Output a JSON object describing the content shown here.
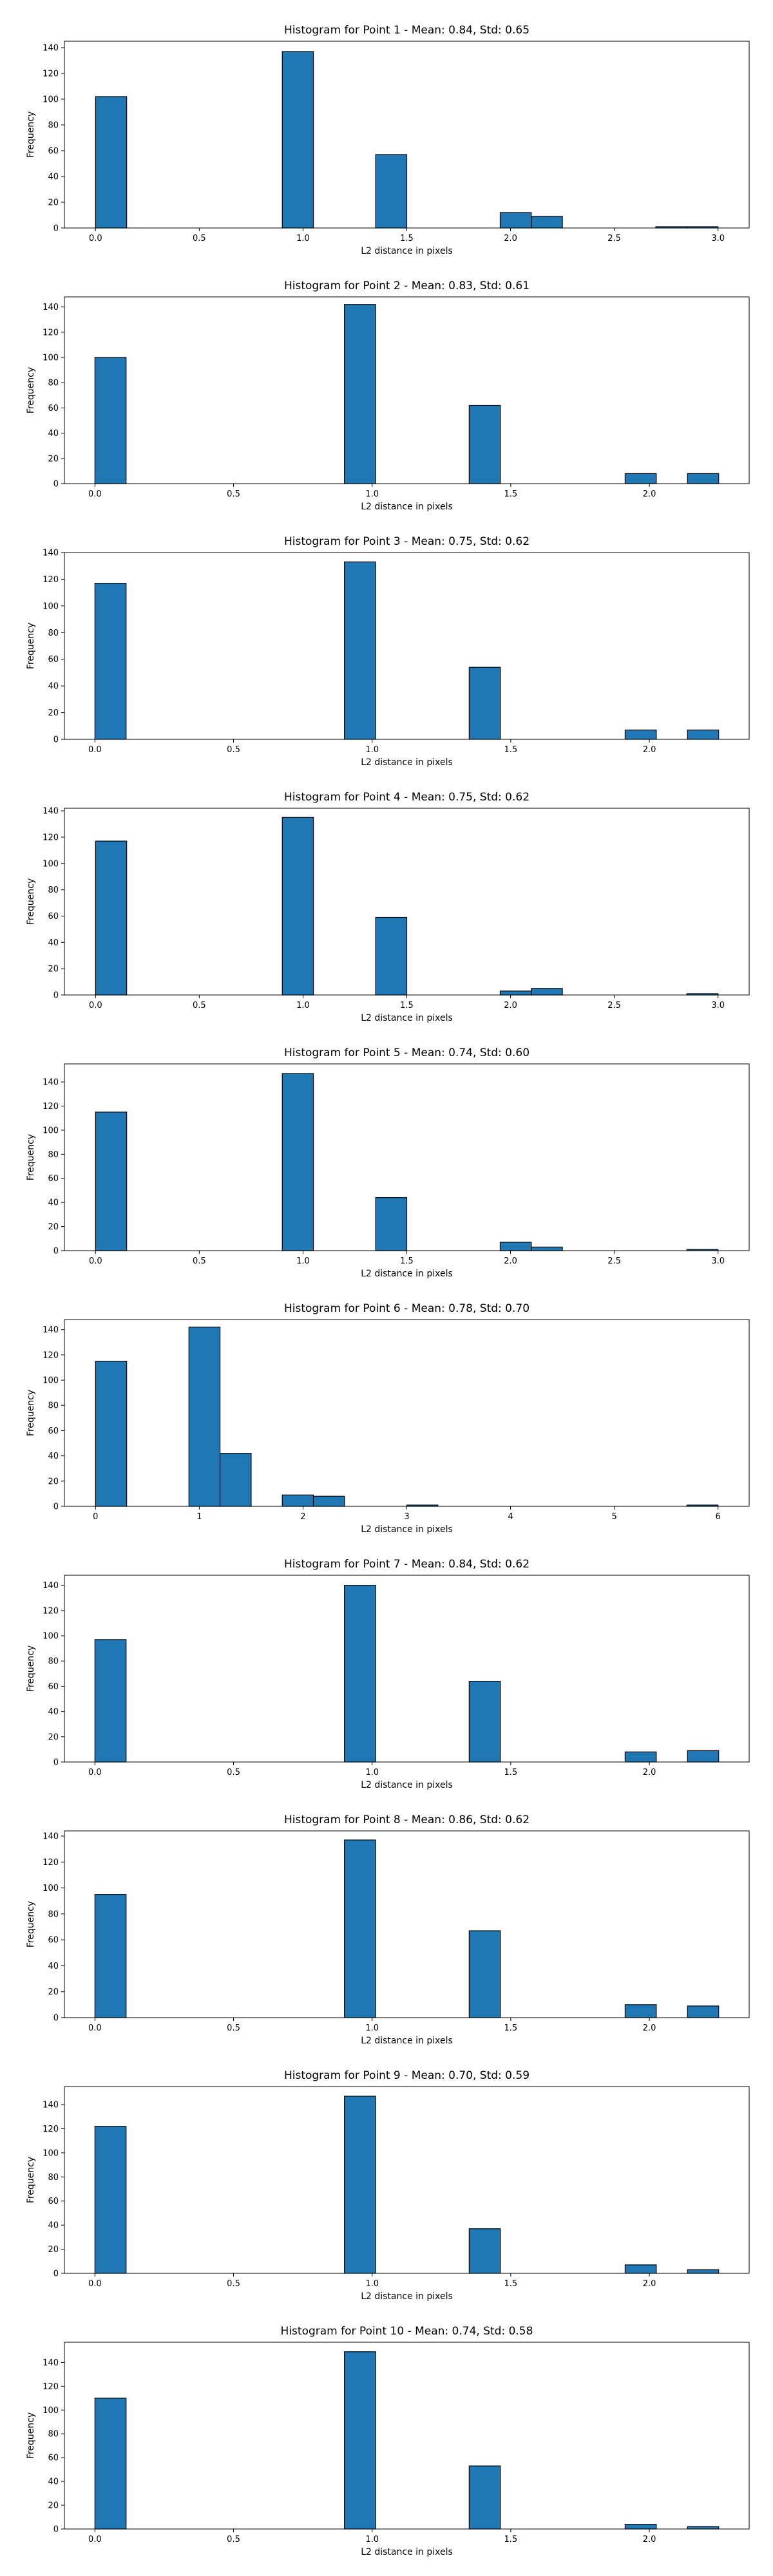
{
  "chart_data": [
    {
      "type": "bar",
      "title": "Histogram for Point 1 - Mean: 0.84, Std: 0.65",
      "xlabel": "L2 distance in pixels",
      "ylabel": "Frequency",
      "xlim": [
        -0.15,
        3.15
      ],
      "ylim": [
        0,
        145
      ],
      "xticks": [
        0,
        0.5,
        1,
        1.5,
        2,
        2.5,
        3
      ],
      "xtick_labels": [
        "0.0",
        "0.5",
        "1.0",
        "1.5",
        "2.0",
        "2.5",
        "3.0"
      ],
      "yticks": [
        0,
        20,
        40,
        60,
        80,
        100,
        120,
        140
      ],
      "bin_width": 0.15,
      "bars": [
        {
          "x0": 0.0,
          "value": 102
        },
        {
          "x0": 0.9,
          "value": 137
        },
        {
          "x0": 1.35,
          "value": 57
        },
        {
          "x0": 1.95,
          "value": 12
        },
        {
          "x0": 2.1,
          "value": 9
        },
        {
          "x0": 2.7,
          "value": 1
        },
        {
          "x0": 2.85,
          "value": 1
        }
      ]
    },
    {
      "type": "bar",
      "title": "Histogram for Point 2 - Mean: 0.83, Std: 0.61",
      "xlabel": "L2 distance in pixels",
      "ylabel": "Frequency",
      "xlim": [
        -0.11,
        2.36
      ],
      "ylim": [
        0,
        148
      ],
      "xticks": [
        0,
        0.5,
        1,
        1.5,
        2
      ],
      "xtick_labels": [
        "0.0",
        "0.5",
        "1.0",
        "1.5",
        "2.0"
      ],
      "yticks": [
        0,
        20,
        40,
        60,
        80,
        100,
        120,
        140
      ],
      "bin_width": 0.1125,
      "bars": [
        {
          "x0": 0.0,
          "value": 100
        },
        {
          "x0": 0.9,
          "value": 142
        },
        {
          "x0": 1.35,
          "value": 62
        },
        {
          "x0": 1.9125,
          "value": 8
        },
        {
          "x0": 2.1375,
          "value": 8
        }
      ]
    },
    {
      "type": "bar",
      "title": "Histogram for Point 3 - Mean: 0.75, Std: 0.62",
      "xlabel": "L2 distance in pixels",
      "ylabel": "Frequency",
      "xlim": [
        -0.11,
        2.36
      ],
      "ylim": [
        0,
        140
      ],
      "xticks": [
        0,
        0.5,
        1,
        1.5,
        2
      ],
      "xtick_labels": [
        "0.0",
        "0.5",
        "1.0",
        "1.5",
        "2.0"
      ],
      "yticks": [
        0,
        20,
        40,
        60,
        80,
        100,
        120,
        140
      ],
      "bin_width": 0.1125,
      "bars": [
        {
          "x0": 0.0,
          "value": 117
        },
        {
          "x0": 0.9,
          "value": 133
        },
        {
          "x0": 1.35,
          "value": 54
        },
        {
          "x0": 1.9125,
          "value": 7
        },
        {
          "x0": 2.1375,
          "value": 7
        }
      ]
    },
    {
      "type": "bar",
      "title": "Histogram for Point 4 - Mean: 0.75, Std: 0.62",
      "xlabel": "L2 distance in pixels",
      "ylabel": "Frequency",
      "xlim": [
        -0.15,
        3.15
      ],
      "ylim": [
        0,
        142
      ],
      "xticks": [
        0,
        0.5,
        1,
        1.5,
        2,
        2.5,
        3
      ],
      "xtick_labels": [
        "0.0",
        "0.5",
        "1.0",
        "1.5",
        "2.0",
        "2.5",
        "3.0"
      ],
      "yticks": [
        0,
        20,
        40,
        60,
        80,
        100,
        120,
        140
      ],
      "bin_width": 0.15,
      "bars": [
        {
          "x0": 0.0,
          "value": 117
        },
        {
          "x0": 0.9,
          "value": 135
        },
        {
          "x0": 1.35,
          "value": 59
        },
        {
          "x0": 1.95,
          "value": 3
        },
        {
          "x0": 2.1,
          "value": 5
        },
        {
          "x0": 2.85,
          "value": 1
        }
      ]
    },
    {
      "type": "bar",
      "title": "Histogram for Point 5 - Mean: 0.74, Std: 0.60",
      "xlabel": "L2 distance in pixels",
      "ylabel": "Frequency",
      "xlim": [
        -0.15,
        3.15
      ],
      "ylim": [
        0,
        155
      ],
      "xticks": [
        0,
        0.5,
        1,
        1.5,
        2,
        2.5,
        3
      ],
      "xtick_labels": [
        "0.0",
        "0.5",
        "1.0",
        "1.5",
        "2.0",
        "2.5",
        "3.0"
      ],
      "yticks": [
        0,
        20,
        40,
        60,
        80,
        100,
        120,
        140
      ],
      "bin_width": 0.15,
      "bars": [
        {
          "x0": 0.0,
          "value": 115
        },
        {
          "x0": 0.9,
          "value": 147
        },
        {
          "x0": 1.35,
          "value": 44
        },
        {
          "x0": 1.95,
          "value": 7
        },
        {
          "x0": 2.1,
          "value": 3
        },
        {
          "x0": 2.85,
          "value": 1
        }
      ]
    },
    {
      "type": "bar",
      "title": "Histogram for Point 6 - Mean: 0.78, Std: 0.70",
      "xlabel": "L2 distance in pixels",
      "ylabel": "Frequency",
      "xlim": [
        -0.3,
        6.3
      ],
      "ylim": [
        0,
        148
      ],
      "xticks": [
        0,
        1,
        2,
        3,
        4,
        5,
        6
      ],
      "xtick_labels": [
        "0",
        "1",
        "2",
        "3",
        "4",
        "5",
        "6"
      ],
      "yticks": [
        0,
        20,
        40,
        60,
        80,
        100,
        120,
        140
      ],
      "bin_width": 0.3,
      "bars": [
        {
          "x0": 0.0,
          "value": 115
        },
        {
          "x0": 0.9,
          "value": 142
        },
        {
          "x0": 1.2,
          "value": 42
        },
        {
          "x0": 1.8,
          "value": 9
        },
        {
          "x0": 2.1,
          "value": 8
        },
        {
          "x0": 3.0,
          "value": 1
        },
        {
          "x0": 5.7,
          "value": 1
        }
      ]
    },
    {
      "type": "bar",
      "title": "Histogram for Point 7 - Mean: 0.84, Std: 0.62",
      "xlabel": "L2 distance in pixels",
      "ylabel": "Frequency",
      "xlim": [
        -0.11,
        2.36
      ],
      "ylim": [
        0,
        148
      ],
      "xticks": [
        0,
        0.5,
        1,
        1.5,
        2
      ],
      "xtick_labels": [
        "0.0",
        "0.5",
        "1.0",
        "1.5",
        "2.0"
      ],
      "yticks": [
        0,
        20,
        40,
        60,
        80,
        100,
        120,
        140
      ],
      "bin_width": 0.1125,
      "bars": [
        {
          "x0": 0.0,
          "value": 97
        },
        {
          "x0": 0.9,
          "value": 140
        },
        {
          "x0": 1.35,
          "value": 64
        },
        {
          "x0": 1.9125,
          "value": 8
        },
        {
          "x0": 2.1375,
          "value": 9
        }
      ]
    },
    {
      "type": "bar",
      "title": "Histogram for Point 8 - Mean: 0.86, Std: 0.62",
      "xlabel": "L2 distance in pixels",
      "ylabel": "Frequency",
      "xlim": [
        -0.11,
        2.36
      ],
      "ylim": [
        0,
        144
      ],
      "xticks": [
        0,
        0.5,
        1,
        1.5,
        2
      ],
      "xtick_labels": [
        "0.0",
        "0.5",
        "1.0",
        "1.5",
        "2.0"
      ],
      "yticks": [
        0,
        20,
        40,
        60,
        80,
        100,
        120,
        140
      ],
      "bin_width": 0.1125,
      "bars": [
        {
          "x0": 0.0,
          "value": 95
        },
        {
          "x0": 0.9,
          "value": 137
        },
        {
          "x0": 1.35,
          "value": 67
        },
        {
          "x0": 1.9125,
          "value": 10
        },
        {
          "x0": 2.1375,
          "value": 9
        }
      ]
    },
    {
      "type": "bar",
      "title": "Histogram for Point 9 - Mean: 0.70, Std: 0.59",
      "xlabel": "L2 distance in pixels",
      "ylabel": "Frequency",
      "xlim": [
        -0.11,
        2.36
      ],
      "ylim": [
        0,
        155
      ],
      "xticks": [
        0,
        0.5,
        1,
        1.5,
        2
      ],
      "xtick_labels": [
        "0.0",
        "0.5",
        "1.0",
        "1.5",
        "2.0"
      ],
      "yticks": [
        0,
        20,
        40,
        60,
        80,
        100,
        120,
        140
      ],
      "bin_width": 0.1125,
      "bars": [
        {
          "x0": 0.0,
          "value": 122
        },
        {
          "x0": 0.9,
          "value": 147
        },
        {
          "x0": 1.35,
          "value": 37
        },
        {
          "x0": 1.9125,
          "value": 7
        },
        {
          "x0": 2.1375,
          "value": 3
        }
      ]
    },
    {
      "type": "bar",
      "title": "Histogram for Point 10 - Mean: 0.74, Std: 0.58",
      "xlabel": "L2 distance in pixels",
      "ylabel": "Frequency",
      "xlim": [
        -0.11,
        2.36
      ],
      "ylim": [
        0,
        157
      ],
      "xticks": [
        0,
        0.5,
        1,
        1.5,
        2
      ],
      "xtick_labels": [
        "0.0",
        "0.5",
        "1.0",
        "1.5",
        "2.0"
      ],
      "yticks": [
        0,
        20,
        40,
        60,
        80,
        100,
        120,
        140
      ],
      "bin_width": 0.1125,
      "bars": [
        {
          "x0": 0.0,
          "value": 110
        },
        {
          "x0": 0.9,
          "value": 149
        },
        {
          "x0": 1.35,
          "value": 53
        },
        {
          "x0": 1.9125,
          "value": 4
        },
        {
          "x0": 2.1375,
          "value": 2
        }
      ]
    }
  ]
}
